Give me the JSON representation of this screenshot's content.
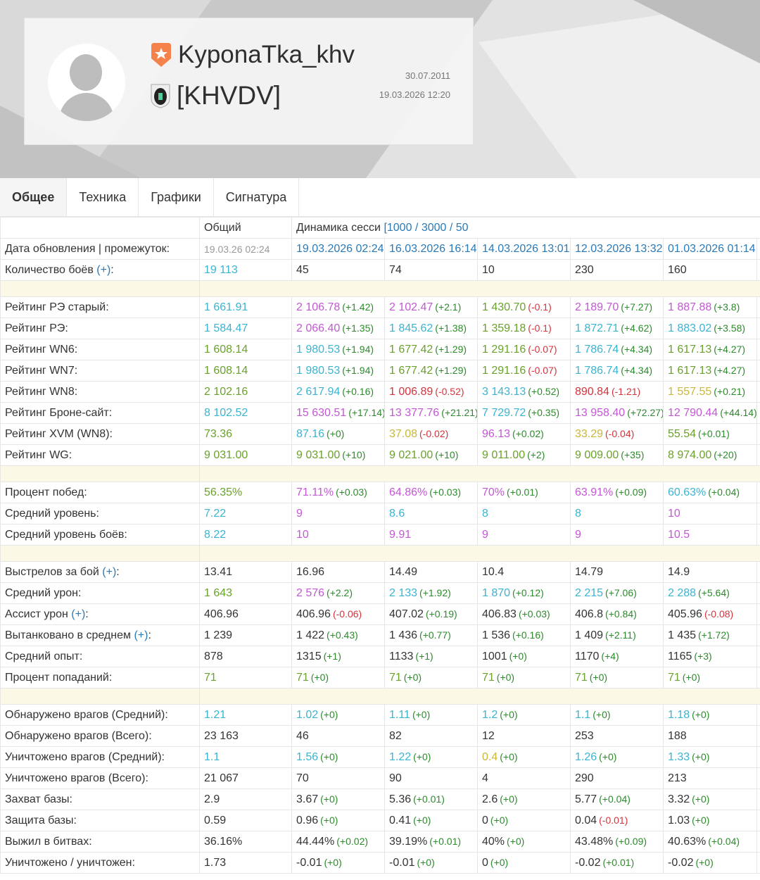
{
  "profile": {
    "nickname": "KyponaTka_khv",
    "clan": "[KHVDV]",
    "registered": "30.07.2011",
    "last_battle": "19.03.2026 12:20"
  },
  "tabs": [
    "Общее",
    "Техника",
    "Графики",
    "Сигнатура"
  ],
  "colors": {
    "green": "#6aa12a",
    "cyan": "#3ab4d2",
    "purple": "#c457d6",
    "red": "#d6333c",
    "yellow": "#c9b73a",
    "delta_pos": "#2d8a2d",
    "delta_neg": "#d6333c"
  },
  "table": {
    "header": {
      "overall": "Общий",
      "session": "Динамика сесси",
      "session_link": "[1000 / 3000 / 50"
    },
    "dates_label": "Дата обновления | промежуток:",
    "dates": [
      "19.03.26 02:24",
      "19.03.2026 02:24",
      "16.03.2026 16:14",
      "14.03.2026 13:01",
      "12.03.2026 13:32",
      "01.03.2026 01:14"
    ],
    "groups": [
      [
        {
          "label": "Количество боёв",
          "link": "(+)",
          "cells": [
            [
              "19 113",
              "c"
            ],
            [
              "45",
              "d"
            ],
            [
              "74",
              "d"
            ],
            [
              "10",
              "d"
            ],
            [
              "230",
              "d"
            ],
            [
              "160",
              "d"
            ]
          ]
        }
      ],
      [
        {
          "label": "Рейтинг РЭ старый:",
          "cells": [
            [
              "1 661.91",
              "c"
            ],
            [
              "2 106.78",
              "p",
              "(+1.42)"
            ],
            [
              "2 102.47",
              "p",
              "(+2.1)"
            ],
            [
              "1 430.70",
              "g",
              "(-0.1)"
            ],
            [
              "2 189.70",
              "p",
              "(+7.27)"
            ],
            [
              "1 887.88",
              "p",
              "(+3.8)"
            ]
          ]
        },
        {
          "label": "Рейтинг РЭ:",
          "cells": [
            [
              "1 584.47",
              "c"
            ],
            [
              "2 066.40",
              "p",
              "(+1.35)"
            ],
            [
              "1 845.62",
              "c",
              "(+1.38)"
            ],
            [
              "1 359.18",
              "g",
              "(-0.1)"
            ],
            [
              "1 872.71",
              "c",
              "(+4.62)"
            ],
            [
              "1 883.02",
              "c",
              "(+3.58)"
            ]
          ]
        },
        {
          "label": "Рейтинг WN6:",
          "cells": [
            [
              "1 608.14",
              "g"
            ],
            [
              "1 980.53",
              "c",
              "(+1.94)"
            ],
            [
              "1 677.42",
              "g",
              "(+1.29)"
            ],
            [
              "1 291.16",
              "g",
              "(-0.07)"
            ],
            [
              "1 786.74",
              "c",
              "(+4.34)"
            ],
            [
              "1 617.13",
              "g",
              "(+4.27)"
            ]
          ]
        },
        {
          "label": "Рейтинг WN7:",
          "cells": [
            [
              "1 608.14",
              "g"
            ],
            [
              "1 980.53",
              "c",
              "(+1.94)"
            ],
            [
              "1 677.42",
              "g",
              "(+1.29)"
            ],
            [
              "1 291.16",
              "g",
              "(-0.07)"
            ],
            [
              "1 786.74",
              "c",
              "(+4.34)"
            ],
            [
              "1 617.13",
              "g",
              "(+4.27)"
            ]
          ]
        },
        {
          "label": "Рейтинг WN8:",
          "cells": [
            [
              "2 102.16",
              "g"
            ],
            [
              "2 617.94",
              "c",
              "(+0.16)"
            ],
            [
              "1 006.89",
              "r",
              "(-0.52)"
            ],
            [
              "3 143.13",
              "c",
              "(+0.52)"
            ],
            [
              "890.84",
              "r",
              "(-1.21)"
            ],
            [
              "1 557.55",
              "y",
              "(+0.21)"
            ]
          ]
        },
        {
          "label": "Рейтинг Броне-сайт:",
          "cells": [
            [
              "8 102.52",
              "c"
            ],
            [
              "15 630.51",
              "p",
              "(+17.14)"
            ],
            [
              "13 377.76",
              "p",
              "(+21.21)"
            ],
            [
              "7 729.72",
              "c",
              "(+0.35)"
            ],
            [
              "13 958.40",
              "p",
              "(+72.27)"
            ],
            [
              "12 790.44",
              "p",
              "(+44.14)"
            ]
          ]
        },
        {
          "label": "Рейтинг XVM (WN8):",
          "cells": [
            [
              "73.36",
              "g"
            ],
            [
              "87.16",
              "c",
              "(+0)"
            ],
            [
              "37.08",
              "y",
              "(-0.02)"
            ],
            [
              "96.13",
              "p",
              "(+0.02)"
            ],
            [
              "33.29",
              "y",
              "(-0.04)"
            ],
            [
              "55.54",
              "g",
              "(+0.01)"
            ]
          ]
        },
        {
          "label": "Рейтинг WG:",
          "cells": [
            [
              "9 031.00",
              "g"
            ],
            [
              "9 031.00",
              "g",
              "(+10)"
            ],
            [
              "9 021.00",
              "g",
              "(+10)"
            ],
            [
              "9 011.00",
              "g",
              "(+2)"
            ],
            [
              "9 009.00",
              "g",
              "(+35)"
            ],
            [
              "8 974.00",
              "g",
              "(+20)"
            ]
          ]
        }
      ],
      [
        {
          "label": "Процент побед:",
          "cells": [
            [
              "56.35%",
              "g"
            ],
            [
              "71.11%",
              "p",
              "(+0.03)"
            ],
            [
              "64.86%",
              "p",
              "(+0.03)"
            ],
            [
              "70%",
              "p",
              "(+0.01)"
            ],
            [
              "63.91%",
              "p",
              "(+0.09)"
            ],
            [
              "60.63%",
              "c",
              "(+0.04)"
            ]
          ]
        },
        {
          "label": "Средний уровень:",
          "cells": [
            [
              "7.22",
              "c"
            ],
            [
              "9",
              "p"
            ],
            [
              "8.6",
              "c"
            ],
            [
              "8",
              "c"
            ],
            [
              "8",
              "c"
            ],
            [
              "10",
              "p"
            ]
          ]
        },
        {
          "label": "Средний уровень боёв:",
          "cells": [
            [
              "8.22",
              "c"
            ],
            [
              "10",
              "p"
            ],
            [
              "9.91",
              "p"
            ],
            [
              "9",
              "p"
            ],
            [
              "9",
              "p"
            ],
            [
              "10.5",
              "p"
            ]
          ]
        }
      ],
      [
        {
          "label": "Выстрелов за бой",
          "link": "(+)",
          "cells": [
            [
              "13.41",
              "d"
            ],
            [
              "16.96",
              "d"
            ],
            [
              "14.49",
              "d"
            ],
            [
              "10.4",
              "d"
            ],
            [
              "14.79",
              "d"
            ],
            [
              "14.9",
              "d"
            ]
          ]
        },
        {
          "label": "Средний урон:",
          "cells": [
            [
              "1 643",
              "g"
            ],
            [
              "2 576",
              "p",
              "(+2.2)"
            ],
            [
              "2 133",
              "c",
              "(+1.92)"
            ],
            [
              "1 870",
              "c",
              "(+0.12)"
            ],
            [
              "2 215",
              "c",
              "(+7.06)"
            ],
            [
              "2 288",
              "c",
              "(+5.64)"
            ]
          ]
        },
        {
          "label": "Ассист урон",
          "link": "(+)",
          "cells": [
            [
              "406.96",
              "d"
            ],
            [
              "406.96",
              "d",
              "(-0.06)"
            ],
            [
              "407.02",
              "d",
              "(+0.19)"
            ],
            [
              "406.83",
              "d",
              "(+0.03)"
            ],
            [
              "406.8",
              "d",
              "(+0.84)"
            ],
            [
              "405.96",
              "d",
              "(-0.08)"
            ]
          ]
        },
        {
          "label": "Вытанковано в среднем",
          "link": "(+)",
          "cells": [
            [
              "1 239",
              "d"
            ],
            [
              "1 422",
              "d",
              "(+0.43)"
            ],
            [
              "1 436",
              "d",
              "(+0.77)"
            ],
            [
              "1 536",
              "d",
              "(+0.16)"
            ],
            [
              "1 409",
              "d",
              "(+2.11)"
            ],
            [
              "1 435",
              "d",
              "(+1.72)"
            ]
          ]
        },
        {
          "label": "Средний опыт:",
          "cells": [
            [
              "878",
              "d"
            ],
            [
              "1315",
              "d",
              "(+1)"
            ],
            [
              "1133",
              "d",
              "(+1)"
            ],
            [
              "1001",
              "d",
              "(+0)"
            ],
            [
              "1170",
              "d",
              "(+4)"
            ],
            [
              "1165",
              "d",
              "(+3)"
            ]
          ]
        },
        {
          "label": "Процент попаданий:",
          "cells": [
            [
              "71",
              "g"
            ],
            [
              "71",
              "g",
              "(+0)"
            ],
            [
              "71",
              "g",
              "(+0)"
            ],
            [
              "71",
              "g",
              "(+0)"
            ],
            [
              "71",
              "g",
              "(+0)"
            ],
            [
              "71",
              "g",
              "(+0)"
            ]
          ]
        }
      ],
      [
        {
          "label": "Обнаружено врагов (Средний):",
          "cells": [
            [
              "1.21",
              "c"
            ],
            [
              "1.02",
              "c",
              "(+0)"
            ],
            [
              "1.11",
              "c",
              "(+0)"
            ],
            [
              "1.2",
              "c",
              "(+0)"
            ],
            [
              "1.1",
              "c",
              "(+0)"
            ],
            [
              "1.18",
              "c",
              "(+0)"
            ]
          ]
        },
        {
          "label": "Обнаружено врагов (Всего):",
          "cells": [
            [
              "23 163",
              "d"
            ],
            [
              "46",
              "d"
            ],
            [
              "82",
              "d"
            ],
            [
              "12",
              "d"
            ],
            [
              "253",
              "d"
            ],
            [
              "188",
              "d"
            ]
          ]
        },
        {
          "label": "Уничтожено врагов (Средний):",
          "cells": [
            [
              "1.1",
              "c"
            ],
            [
              "1.56",
              "c",
              "(+0)"
            ],
            [
              "1.22",
              "c",
              "(+0)"
            ],
            [
              "0.4",
              "y",
              "(+0)"
            ],
            [
              "1.26",
              "c",
              "(+0)"
            ],
            [
              "1.33",
              "c",
              "(+0)"
            ]
          ]
        },
        {
          "label": "Уничтожено врагов (Всего):",
          "cells": [
            [
              "21 067",
              "d"
            ],
            [
              "70",
              "d"
            ],
            [
              "90",
              "d"
            ],
            [
              "4",
              "d"
            ],
            [
              "290",
              "d"
            ],
            [
              "213",
              "d"
            ]
          ]
        },
        {
          "label": "Захват базы:",
          "cells": [
            [
              "2.9",
              "d"
            ],
            [
              "3.67",
              "d",
              "(+0)"
            ],
            [
              "5.36",
              "d",
              "(+0.01)"
            ],
            [
              "2.6",
              "d",
              "(+0)"
            ],
            [
              "5.77",
              "d",
              "(+0.04)"
            ],
            [
              "3.32",
              "d",
              "(+0)"
            ]
          ]
        },
        {
          "label": "Защита базы:",
          "cells": [
            [
              "0.59",
              "d"
            ],
            [
              "0.96",
              "d",
              "(+0)"
            ],
            [
              "0.41",
              "d",
              "(+0)"
            ],
            [
              "0",
              "d",
              "(+0)"
            ],
            [
              "0.04",
              "d",
              "(-0.01)"
            ],
            [
              "1.03",
              "d",
              "(+0)"
            ]
          ]
        },
        {
          "label": "Выжил в битвах:",
          "cells": [
            [
              "36.16%",
              "d"
            ],
            [
              "44.44%",
              "d",
              "(+0.02)"
            ],
            [
              "39.19%",
              "d",
              "(+0.01)"
            ],
            [
              "40%",
              "d",
              "(+0)"
            ],
            [
              "43.48%",
              "d",
              "(+0.09)"
            ],
            [
              "40.63%",
              "d",
              "(+0.04)"
            ]
          ]
        },
        {
          "label": "Уничтожено / уничтожен:",
          "cells": [
            [
              "1.73",
              "d"
            ],
            [
              "-0.01",
              "d",
              "(+0)"
            ],
            [
              "-0.01",
              "d",
              "(+0)"
            ],
            [
              "0",
              "d",
              "(+0)"
            ],
            [
              "-0.02",
              "d",
              "(+0.01)"
            ],
            [
              "-0.02",
              "d",
              "(+0)"
            ]
          ]
        }
      ]
    ]
  }
}
